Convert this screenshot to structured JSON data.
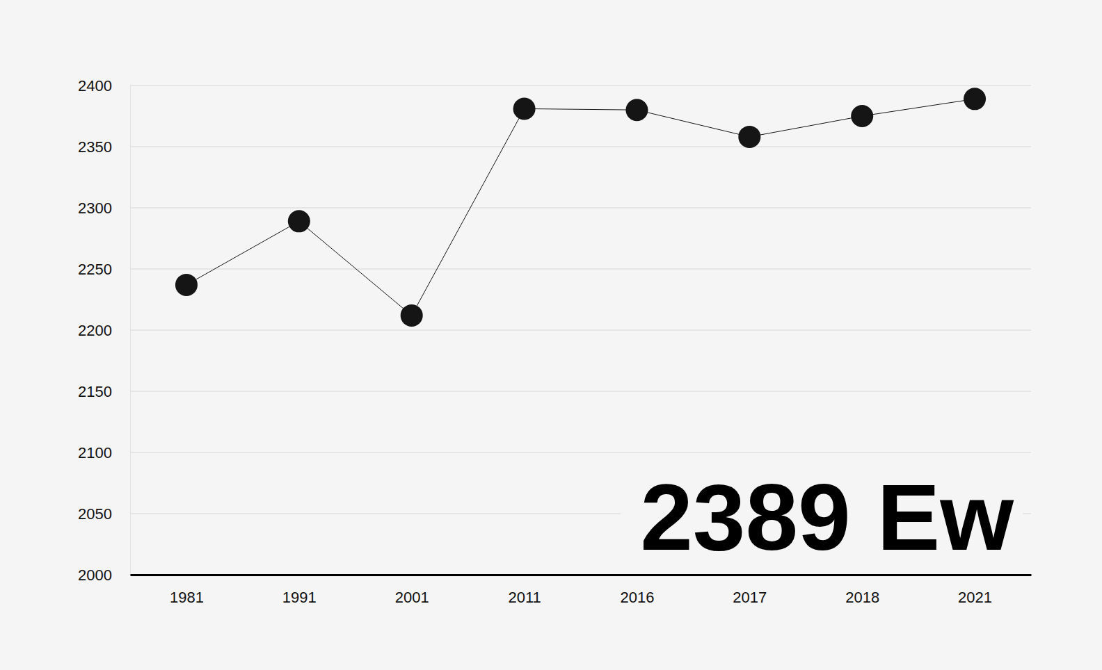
{
  "chart_data": {
    "type": "line",
    "categories": [
      "1981",
      "1991",
      "2001",
      "2011",
      "2016",
      "2017",
      "2018",
      "2021"
    ],
    "values": [
      2237,
      2289,
      2212,
      2381,
      2380,
      2358,
      2375,
      2389
    ],
    "color": "#151515",
    "marker": "circle",
    "ylim": [
      2000,
      2400
    ],
    "yticks": [
      2000,
      2050,
      2100,
      2150,
      2200,
      2250,
      2300,
      2350,
      2400
    ],
    "grid": true,
    "annotation": "2389 Ew"
  }
}
